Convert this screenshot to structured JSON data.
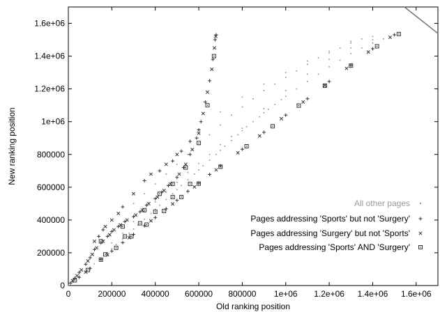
{
  "chart_data": {
    "type": "scatter",
    "xlabel": "Old ranking position",
    "ylabel": "New ranking position",
    "xlim": [
      0,
      1700000
    ],
    "ylim": [
      0,
      1700000
    ],
    "xticks": [
      {
        "v": 0,
        "label": "0"
      },
      {
        "v": 200000,
        "label": "200000"
      },
      {
        "v": 400000,
        "label": "400000"
      },
      {
        "v": 600000,
        "label": "600000"
      },
      {
        "v": 800000,
        "label": "800000"
      },
      {
        "v": 1000000,
        "label": "1e+06"
      },
      {
        "v": 1200000,
        "label": "1.2e+06"
      },
      {
        "v": 1400000,
        "label": "1.4e+06"
      },
      {
        "v": 1600000,
        "label": "1.6e+06"
      }
    ],
    "yticks": [
      {
        "v": 0,
        "label": "0"
      },
      {
        "v": 200000,
        "label": "200000"
      },
      {
        "v": 400000,
        "label": "400000"
      },
      {
        "v": 600000,
        "label": "600000"
      },
      {
        "v": 800000,
        "label": "800000"
      },
      {
        "v": 1000000,
        "label": "1e+06"
      },
      {
        "v": 1200000,
        "label": "1.2e+06"
      },
      {
        "v": 1400000,
        "label": "1.4e+06"
      },
      {
        "v": 1600000,
        "label": "1.6e+06"
      }
    ],
    "grid": false,
    "legend_position": "bottom-right",
    "series": [
      {
        "name": "All other pages",
        "marker": "dot",
        "color": "#8c8c8c",
        "points": [
          [
            0,
            0
          ],
          [
            20000,
            20000
          ],
          [
            50000,
            52000
          ],
          [
            80000,
            85000
          ],
          [
            100000,
            108000
          ],
          [
            120000,
            132000
          ],
          [
            150000,
            165000
          ],
          [
            180000,
            200000
          ],
          [
            200000,
            225000
          ],
          [
            220000,
            250000
          ],
          [
            250000,
            285000
          ],
          [
            280000,
            320000
          ],
          [
            300000,
            345000
          ],
          [
            320000,
            370000
          ],
          [
            350000,
            405000
          ],
          [
            380000,
            440000
          ],
          [
            400000,
            465000
          ],
          [
            420000,
            490000
          ],
          [
            450000,
            525000
          ],
          [
            480000,
            560000
          ],
          [
            500000,
            585000
          ],
          [
            520000,
            610000
          ],
          [
            550000,
            645000
          ],
          [
            580000,
            680000
          ],
          [
            600000,
            705000
          ],
          [
            620000,
            730000
          ],
          [
            650000,
            765000
          ],
          [
            680000,
            800000
          ],
          [
            700000,
            825000
          ],
          [
            720000,
            850000
          ],
          [
            750000,
            885000
          ],
          [
            780000,
            920000
          ],
          [
            800000,
            945000
          ],
          [
            820000,
            970000
          ],
          [
            850000,
            1000000
          ],
          [
            880000,
            1030000
          ],
          [
            900000,
            1055000
          ],
          [
            920000,
            1075000
          ],
          [
            950000,
            1105000
          ],
          [
            980000,
            1135000
          ],
          [
            1000000,
            1155000
          ],
          [
            1050000,
            1200000
          ],
          [
            1100000,
            1245000
          ],
          [
            1150000,
            1290000
          ],
          [
            1200000,
            1335000
          ],
          [
            1250000,
            1375000
          ],
          [
            1300000,
            1415000
          ],
          [
            1350000,
            1450000
          ],
          [
            1400000,
            1480000
          ],
          [
            1450000,
            1505000
          ],
          [
            1500000,
            1530000
          ],
          [
            300000,
            500000
          ],
          [
            350000,
            560000
          ],
          [
            400000,
            620000
          ],
          [
            450000,
            680000
          ],
          [
            500000,
            740000
          ],
          [
            550000,
            800000
          ],
          [
            600000,
            860000
          ],
          [
            650000,
            920000
          ],
          [
            700000,
            980000
          ],
          [
            750000,
            1040000
          ],
          [
            800000,
            1090000
          ],
          [
            850000,
            1140000
          ],
          [
            900000,
            1190000
          ],
          [
            950000,
            1230000
          ],
          [
            1000000,
            1270000
          ],
          [
            1050000,
            1310000
          ],
          [
            1100000,
            1350000
          ],
          [
            1150000,
            1390000
          ],
          [
            1200000,
            1420000
          ],
          [
            1250000,
            1450000
          ],
          [
            1300000,
            1480000
          ],
          [
            1350000,
            1505000
          ],
          [
            1400000,
            1520000
          ],
          [
            200000,
            260000
          ],
          [
            250000,
            320000
          ],
          [
            300000,
            390000
          ],
          [
            350000,
            450000
          ],
          [
            400000,
            510000
          ],
          [
            450000,
            570000
          ],
          [
            500000,
            630000
          ],
          [
            550000,
            690000
          ],
          [
            600000,
            745000
          ],
          [
            650000,
            800000
          ],
          [
            700000,
            860000
          ],
          [
            750000,
            910000
          ],
          [
            800000,
            960000
          ],
          [
            900000,
            1080000
          ],
          [
            1000000,
            1190000
          ],
          [
            1100000,
            1290000
          ],
          [
            1200000,
            1380000
          ],
          [
            1300000,
            1450000
          ],
          [
            1400000,
            1500000
          ],
          [
            600000,
            950000
          ],
          [
            700000,
            1060000
          ],
          [
            800000,
            1150000
          ],
          [
            900000,
            1230000
          ],
          [
            1000000,
            1300000
          ],
          [
            1100000,
            1370000
          ],
          [
            1200000,
            1430000
          ],
          [
            1300000,
            1490000
          ]
        ]
      },
      {
        "name": "Pages addressing 'Sports' but not 'Surgery'",
        "marker": "plus",
        "color": "#333333",
        "points": [
          [
            10000,
            15000
          ],
          [
            30000,
            45000
          ],
          [
            50000,
            80000
          ],
          [
            80000,
            130000
          ],
          [
            100000,
            170000
          ],
          [
            120000,
            220000
          ],
          [
            150000,
            260000
          ],
          [
            180000,
            300000
          ],
          [
            200000,
            330000
          ],
          [
            230000,
            360000
          ],
          [
            260000,
            390000
          ],
          [
            300000,
            420000
          ],
          [
            330000,
            450000
          ],
          [
            360000,
            490000
          ],
          [
            400000,
            530000
          ],
          [
            430000,
            570000
          ],
          [
            460000,
            610000
          ],
          [
            500000,
            660000
          ],
          [
            530000,
            720000
          ],
          [
            560000,
            800000
          ],
          [
            590000,
            900000
          ],
          [
            610000,
            1000000
          ],
          [
            630000,
            1120000
          ],
          [
            650000,
            1250000
          ],
          [
            665000,
            1380000
          ],
          [
            675000,
            1500000
          ],
          [
            680000,
            1530000
          ],
          [
            50000,
            50000
          ],
          [
            100000,
            105000
          ],
          [
            150000,
            160000
          ],
          [
            200000,
            210000
          ],
          [
            250000,
            262000
          ],
          [
            300000,
            312000
          ],
          [
            350000,
            365000
          ],
          [
            400000,
            415000
          ],
          [
            450000,
            468000
          ],
          [
            500000,
            520000
          ],
          [
            550000,
            575000
          ],
          [
            600000,
            625000
          ],
          [
            650000,
            678000
          ],
          [
            700000,
            730000
          ],
          [
            800000,
            832000
          ],
          [
            900000,
            935000
          ],
          [
            1000000,
            1040000
          ],
          [
            1100000,
            1140000
          ],
          [
            1200000,
            1245000
          ],
          [
            1300000,
            1345000
          ],
          [
            1400000,
            1445000
          ],
          [
            1500000,
            1530000
          ],
          [
            140000,
            300000
          ],
          [
            160000,
            340000
          ],
          [
            250000,
            480000
          ],
          [
            350000,
            640000
          ],
          [
            420000,
            700000
          ],
          [
            480000,
            760000
          ],
          [
            520000,
            820000
          ],
          [
            560000,
            880000
          ],
          [
            600000,
            950000
          ]
        ]
      },
      {
        "name": "Pages addressing 'Surgery' but not 'Sports'",
        "marker": "cross",
        "color": "#333333",
        "points": [
          [
            20000,
            30000
          ],
          [
            40000,
            60000
          ],
          [
            60000,
            95000
          ],
          [
            90000,
            150000
          ],
          [
            110000,
            190000
          ],
          [
            130000,
            230000
          ],
          [
            160000,
            270000
          ],
          [
            190000,
            310000
          ],
          [
            210000,
            340000
          ],
          [
            240000,
            370000
          ],
          [
            270000,
            400000
          ],
          [
            310000,
            430000
          ],
          [
            340000,
            460000
          ],
          [
            370000,
            500000
          ],
          [
            410000,
            540000
          ],
          [
            440000,
            580000
          ],
          [
            470000,
            620000
          ],
          [
            510000,
            680000
          ],
          [
            540000,
            740000
          ],
          [
            570000,
            830000
          ],
          [
            600000,
            930000
          ],
          [
            620000,
            1050000
          ],
          [
            640000,
            1180000
          ],
          [
            660000,
            1320000
          ],
          [
            672000,
            1450000
          ],
          [
            678000,
            1520000
          ],
          [
            80000,
            82000
          ],
          [
            180000,
            188000
          ],
          [
            280000,
            292000
          ],
          [
            380000,
            395000
          ],
          [
            480000,
            498000
          ],
          [
            580000,
            602000
          ],
          [
            680000,
            706000
          ],
          [
            780000,
            810000
          ],
          [
            880000,
            913000
          ],
          [
            980000,
            1018000
          ],
          [
            1080000,
            1120000
          ],
          [
            1180000,
            1222000
          ],
          [
            1280000,
            1325000
          ],
          [
            1380000,
            1425000
          ],
          [
            1480000,
            1515000
          ],
          [
            120000,
            270000
          ],
          [
            170000,
            360000
          ],
          [
            200000,
            400000
          ],
          [
            230000,
            440000
          ],
          [
            300000,
            560000
          ],
          [
            380000,
            680000
          ],
          [
            450000,
            740000
          ],
          [
            500000,
            800000
          ]
        ]
      },
      {
        "name": "Pages addressing 'Sports' AND 'Surgery'",
        "marker": "boxdot",
        "color": "#333333",
        "points": [
          [
            30000,
            32000
          ],
          [
            90000,
            95000
          ],
          [
            150000,
            158000
          ],
          [
            220000,
            230000
          ],
          [
            290000,
            300000
          ],
          [
            360000,
            372000
          ],
          [
            440000,
            455000
          ],
          [
            520000,
            540000
          ],
          [
            600000,
            622000
          ],
          [
            700000,
            725000
          ],
          [
            820000,
            850000
          ],
          [
            940000,
            972000
          ],
          [
            1060000,
            1098000
          ],
          [
            1180000,
            1220000
          ],
          [
            1300000,
            1342000
          ],
          [
            1420000,
            1460000
          ],
          [
            1520000,
            1535000
          ],
          [
            150000,
            270000
          ],
          [
            250000,
            360000
          ],
          [
            350000,
            460000
          ],
          [
            420000,
            560000
          ],
          [
            480000,
            620000
          ],
          [
            540000,
            720000
          ],
          [
            600000,
            870000
          ],
          [
            640000,
            1100000
          ],
          [
            670000,
            1400000
          ],
          [
            170000,
            190000
          ],
          [
            260000,
            300000
          ],
          [
            330000,
            380000
          ],
          [
            400000,
            450000
          ],
          [
            480000,
            540000
          ],
          [
            560000,
            620000
          ]
        ]
      }
    ]
  }
}
